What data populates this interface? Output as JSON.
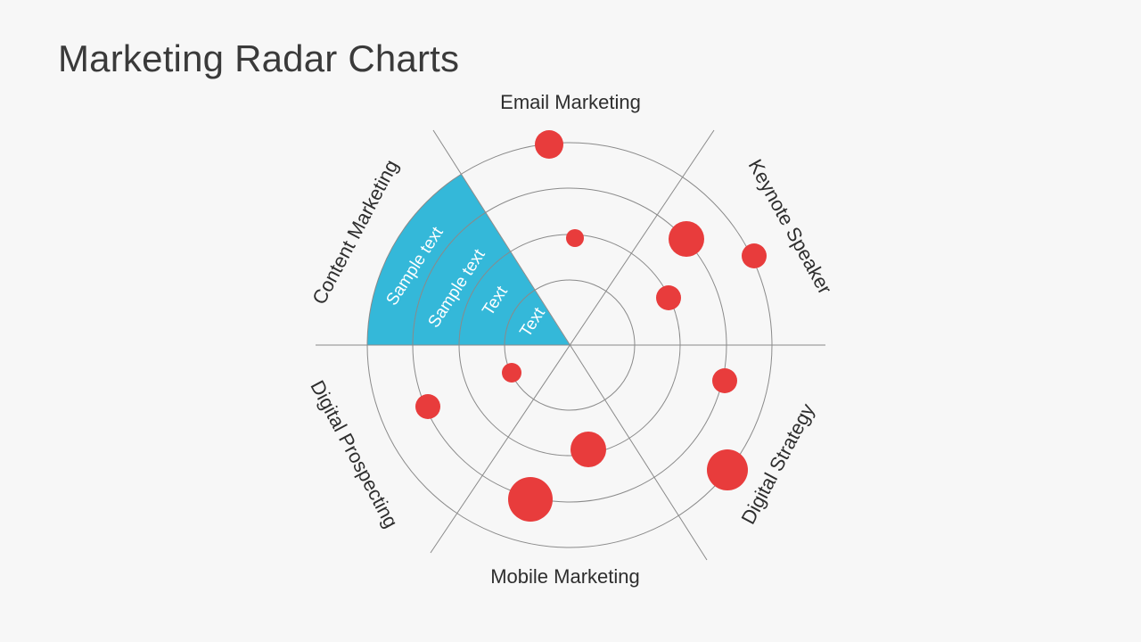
{
  "slide": {
    "title": "Marketing Radar Charts"
  },
  "categories": [
    {
      "key": "email",
      "label": "Email Marketing"
    },
    {
      "key": "keynote",
      "label": "Keynote Speaker"
    },
    {
      "key": "strategy",
      "label": "Digital Strategy"
    },
    {
      "key": "mobile",
      "label": "Mobile Marketing"
    },
    {
      "key": "prospecting",
      "label": "Digital Prospecting"
    },
    {
      "key": "content",
      "label": "Content Marketing"
    }
  ],
  "highlight_sector": {
    "color": "#34b8d9",
    "labels": [
      "Sample text",
      "Sample text",
      "Text",
      "Text"
    ]
  },
  "colors": {
    "dot": "#e83c3c",
    "grid": "#8a8a8a",
    "highlight": "#34b8d9",
    "background": "#f7f7f7",
    "title": "#3a3a3a"
  }
}
